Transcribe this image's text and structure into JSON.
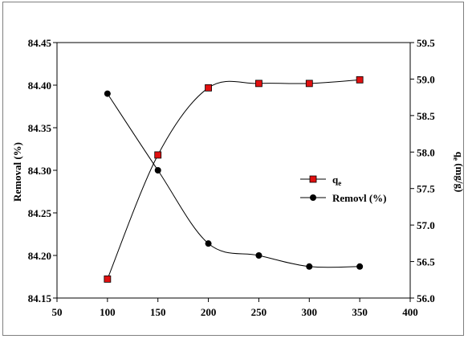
{
  "chart_data": {
    "type": "line",
    "title": "",
    "xlabel": "",
    "x": [
      100,
      150,
      200,
      250,
      300,
      350
    ],
    "xlim": [
      50,
      400
    ],
    "xticks": [
      50,
      100,
      150,
      200,
      250,
      300,
      350,
      400
    ],
    "y_left": {
      "label": "Removal (%)",
      "lim": [
        84.15,
        84.45
      ],
      "ticks": [
        "84.15",
        "84.20",
        "84.25",
        "84.30",
        "84.35",
        "84.40",
        "84.45"
      ]
    },
    "y_right": {
      "label_main": "q",
      "label_sub": "e",
      "label_tail": " (mg/g)",
      "lim": [
        56.0,
        59.5
      ],
      "ticks": [
        "56.0",
        "56.5",
        "57.0",
        "57.5",
        "58.0",
        "58.5",
        "59.0",
        "59.5"
      ]
    },
    "series": [
      {
        "name_main": "q",
        "name_sub": "e",
        "axis": "right",
        "marker": "square",
        "color": "#e01010",
        "values": [
          56.26,
          57.96,
          58.88,
          58.94,
          58.94,
          58.99
        ]
      },
      {
        "name": "Removl (%)",
        "axis": "left",
        "marker": "circle",
        "color": "#000000",
        "values": [
          84.39,
          84.3,
          84.214,
          84.2,
          84.187,
          84.187
        ]
      }
    ],
    "legend_position": "right-middle",
    "grid": false
  }
}
